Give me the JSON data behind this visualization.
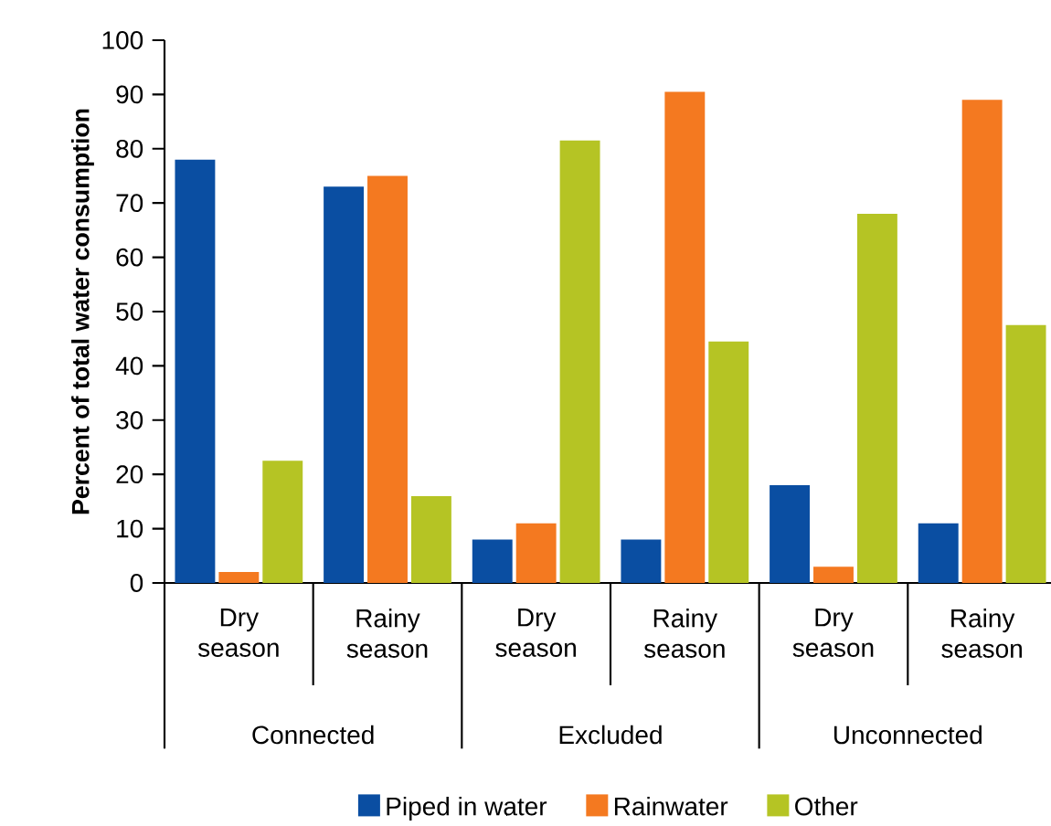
{
  "chart_data": {
    "type": "bar",
    "ylabel": "Percent of total water consumption",
    "categories": [
      "Dry season",
      "Rainy season",
      "Dry season",
      "Rainy season",
      "Dry season",
      "Rainy season"
    ],
    "series": [
      {
        "name": "Piped in water",
        "color": "#0a4ea2",
        "values": [
          78,
          73,
          8,
          8,
          18,
          11
        ]
      },
      {
        "name": "Rainwater",
        "color": "#f47920",
        "values": [
          2,
          75,
          11,
          90.5,
          3,
          89
        ]
      },
      {
        "name": "Other",
        "color": "#b5c424",
        "values": [
          22.5,
          16,
          81.5,
          44.5,
          68,
          47.5
        ]
      }
    ],
    "annotations": [
      "Connected",
      "Excluded",
      "Unconnected"
    ],
    "ylim": [
      0,
      100
    ],
    "yticks": [
      0,
      10,
      20,
      30,
      40,
      50,
      60,
      70,
      80,
      90,
      100
    ],
    "legend": "bottom"
  }
}
